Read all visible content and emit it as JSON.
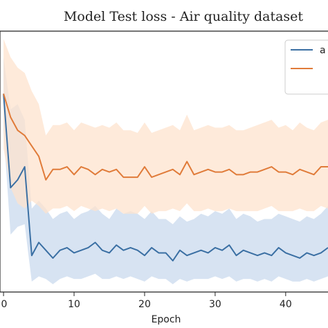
{
  "chart_data": {
    "type": "line",
    "title": "Model Test loss - Air quality dataset",
    "xlabel": "Epoch",
    "ylabel": "",
    "xlim": [
      -0.5,
      46
    ],
    "ylim": [
      0,
      1
    ],
    "grid": false,
    "legend_position": "top-right",
    "x_ticks": [
      0,
      10,
      20,
      30,
      40
    ],
    "x": [
      0,
      1,
      2,
      3,
      4,
      5,
      6,
      7,
      8,
      9,
      10,
      11,
      12,
      13,
      14,
      15,
      16,
      17,
      18,
      19,
      20,
      21,
      22,
      23,
      24,
      25,
      26,
      27,
      28,
      29,
      30,
      31,
      32,
      33,
      34,
      35,
      36,
      37,
      38,
      39,
      40,
      41,
      42,
      43,
      44,
      45,
      46
    ],
    "series": [
      {
        "name": "a",
        "color": "#3a6fa3",
        "band_color": "#c9daed",
        "values": [
          0.76,
          0.4,
          0.43,
          0.48,
          0.14,
          0.19,
          0.16,
          0.13,
          0.16,
          0.17,
          0.15,
          0.16,
          0.17,
          0.19,
          0.16,
          0.15,
          0.18,
          0.16,
          0.17,
          0.16,
          0.14,
          0.17,
          0.15,
          0.15,
          0.12,
          0.16,
          0.14,
          0.15,
          0.16,
          0.15,
          0.17,
          0.16,
          0.18,
          0.14,
          0.16,
          0.15,
          0.14,
          0.15,
          0.14,
          0.17,
          0.15,
          0.14,
          0.13,
          0.15,
          0.14,
          0.15,
          0.17
        ],
        "upper": [
          0.9,
          0.7,
          0.72,
          0.66,
          0.32,
          0.35,
          0.32,
          0.28,
          0.3,
          0.31,
          0.28,
          0.3,
          0.31,
          0.33,
          0.3,
          0.28,
          0.32,
          0.3,
          0.31,
          0.3,
          0.28,
          0.31,
          0.28,
          0.28,
          0.26,
          0.29,
          0.27,
          0.28,
          0.3,
          0.29,
          0.31,
          0.3,
          0.32,
          0.28,
          0.3,
          0.29,
          0.27,
          0.28,
          0.28,
          0.3,
          0.29,
          0.28,
          0.27,
          0.29,
          0.28,
          0.3,
          0.33
        ],
        "lower": [
          0.62,
          0.22,
          0.25,
          0.26,
          0.04,
          0.06,
          0.05,
          0.03,
          0.05,
          0.06,
          0.05,
          0.05,
          0.06,
          0.07,
          0.05,
          0.05,
          0.06,
          0.05,
          0.06,
          0.05,
          0.04,
          0.06,
          0.05,
          0.05,
          0.03,
          0.05,
          0.04,
          0.05,
          0.05,
          0.05,
          0.06,
          0.05,
          0.06,
          0.04,
          0.05,
          0.05,
          0.04,
          0.05,
          0.04,
          0.06,
          0.05,
          0.04,
          0.04,
          0.05,
          0.04,
          0.05,
          0.06
        ]
      },
      {
        "name": "",
        "color": "#e07b39",
        "band_color": "#fde3cd",
        "values": [
          0.76,
          0.67,
          0.62,
          0.6,
          0.56,
          0.52,
          0.43,
          0.47,
          0.47,
          0.48,
          0.45,
          0.48,
          0.47,
          0.45,
          0.47,
          0.46,
          0.47,
          0.44,
          0.44,
          0.44,
          0.48,
          0.44,
          0.45,
          0.46,
          0.47,
          0.45,
          0.5,
          0.45,
          0.46,
          0.47,
          0.46,
          0.46,
          0.47,
          0.45,
          0.45,
          0.46,
          0.46,
          0.47,
          0.48,
          0.46,
          0.46,
          0.45,
          0.47,
          0.46,
          0.45,
          0.48,
          0.48
        ],
        "upper": [
          0.97,
          0.9,
          0.86,
          0.84,
          0.77,
          0.72,
          0.6,
          0.64,
          0.64,
          0.65,
          0.62,
          0.65,
          0.64,
          0.63,
          0.64,
          0.63,
          0.65,
          0.62,
          0.62,
          0.61,
          0.65,
          0.61,
          0.62,
          0.63,
          0.64,
          0.62,
          0.68,
          0.62,
          0.63,
          0.64,
          0.63,
          0.63,
          0.64,
          0.62,
          0.62,
          0.63,
          0.64,
          0.65,
          0.66,
          0.63,
          0.64,
          0.62,
          0.65,
          0.63,
          0.62,
          0.65,
          0.66
        ],
        "lower": [
          0.55,
          0.4,
          0.34,
          0.32,
          0.35,
          0.33,
          0.3,
          0.32,
          0.32,
          0.33,
          0.31,
          0.33,
          0.32,
          0.31,
          0.32,
          0.31,
          0.32,
          0.3,
          0.3,
          0.3,
          0.33,
          0.3,
          0.31,
          0.31,
          0.32,
          0.31,
          0.34,
          0.31,
          0.31,
          0.32,
          0.31,
          0.31,
          0.32,
          0.31,
          0.31,
          0.31,
          0.31,
          0.32,
          0.33,
          0.31,
          0.31,
          0.31,
          0.32,
          0.31,
          0.31,
          0.33,
          0.32
        ]
      }
    ]
  }
}
